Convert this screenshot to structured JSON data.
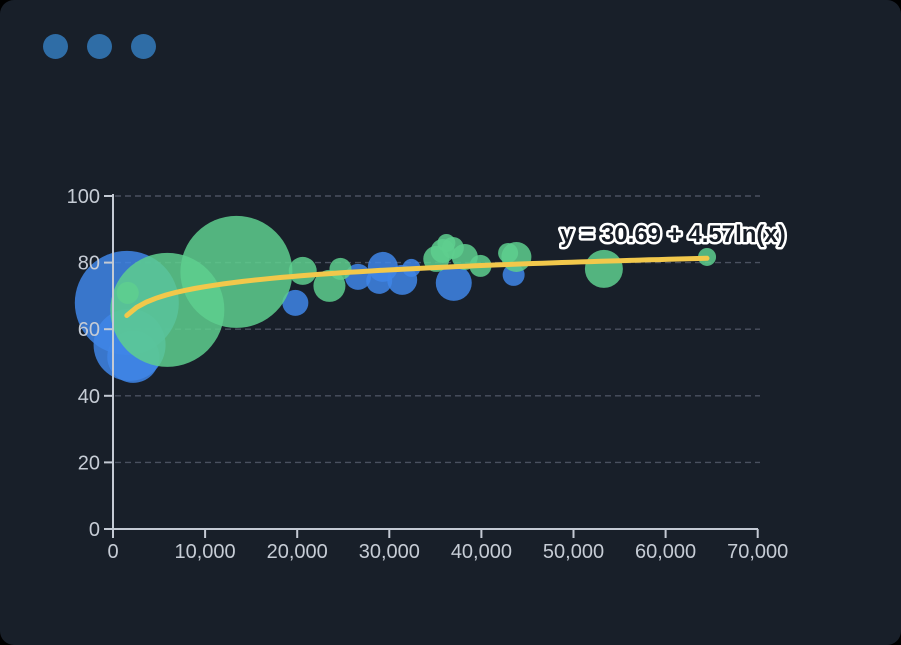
{
  "window": {
    "controls": {
      "dot_color": "#2f6da6",
      "count": 3
    }
  },
  "colors": {
    "page_background": "#000000",
    "window_background": "#181f29",
    "axis": "#c4cad4",
    "tick_label": "#c6ccd5",
    "grid": "#4a5160",
    "blue_bubble": "#3f86e8",
    "green_bubble": "#5ecf8e",
    "trendline": "#f2c84b",
    "annotation_fill": "#161c26",
    "annotation_outline": "#ffffff"
  },
  "chart_data": {
    "type": "scatter",
    "subtype": "bubble",
    "title": "",
    "xlabel": "",
    "ylabel": "",
    "xlim": [
      0,
      70000
    ],
    "ylim": [
      0,
      100
    ],
    "grid": "horizontal-dashed",
    "legend": "none",
    "annotation": "y = 30.69 + 4.57ln(x)",
    "x_ticks": {
      "values": [
        0,
        10000,
        20000,
        30000,
        40000,
        50000,
        60000,
        70000
      ],
      "labels": [
        "0",
        "10,000",
        "20,000",
        "30,000",
        "40,000",
        "50,000",
        "60,000",
        "70,000"
      ]
    },
    "y_ticks": {
      "values": [
        0,
        20,
        40,
        60,
        80,
        100
      ],
      "labels": [
        "0",
        "20",
        "40",
        "60",
        "80",
        "100"
      ]
    },
    "trendline": {
      "kind": "logarithmic",
      "equation": "y = 30.69 + 4.57ln(x)",
      "intercept": 30.69,
      "coefficient": 4.57,
      "x_start": 1500,
      "x_end": 64500
    },
    "series": [
      {
        "name": "blue",
        "color": "#3f86e8",
        "opacity": 0.85,
        "points": [
          {
            "x": 1500,
            "y": 67.9,
            "r": 52
          },
          {
            "x": 1800,
            "y": 55.3,
            "r": 36
          },
          {
            "x": 2200,
            "y": 51.7,
            "r": 26
          },
          {
            "x": 19800,
            "y": 67.9,
            "r": 13
          },
          {
            "x": 26600,
            "y": 75.7,
            "r": 13
          },
          {
            "x": 28900,
            "y": 74.5,
            "r": 13
          },
          {
            "x": 29300,
            "y": 78.7,
            "r": 15
          },
          {
            "x": 31400,
            "y": 74.8,
            "r": 15
          },
          {
            "x": 32400,
            "y": 78.4,
            "r": 9
          },
          {
            "x": 37000,
            "y": 73.9,
            "r": 18
          },
          {
            "x": 43500,
            "y": 76.3,
            "r": 11
          }
        ]
      },
      {
        "name": "green",
        "color": "#5ecf8e",
        "opacity": 0.85,
        "points": [
          {
            "x": 1600,
            "y": 70.9,
            "r": 11
          },
          {
            "x": 5900,
            "y": 65.8,
            "r": 57
          },
          {
            "x": 13400,
            "y": 77.2,
            "r": 56
          },
          {
            "x": 20600,
            "y": 77.5,
            "r": 14
          },
          {
            "x": 23500,
            "y": 73.0,
            "r": 16
          },
          {
            "x": 24700,
            "y": 78.1,
            "r": 11
          },
          {
            "x": 35100,
            "y": 81.1,
            "r": 13
          },
          {
            "x": 35800,
            "y": 83.5,
            "r": 12
          },
          {
            "x": 36200,
            "y": 85.9,
            "r": 9
          },
          {
            "x": 36900,
            "y": 84.4,
            "r": 11
          },
          {
            "x": 38200,
            "y": 81.7,
            "r": 13
          },
          {
            "x": 39900,
            "y": 79.0,
            "r": 11
          },
          {
            "x": 42900,
            "y": 82.9,
            "r": 10
          },
          {
            "x": 43800,
            "y": 81.7,
            "r": 15
          },
          {
            "x": 53300,
            "y": 78.1,
            "r": 19
          },
          {
            "x": 64500,
            "y": 81.7,
            "r": 9
          }
        ]
      }
    ]
  }
}
